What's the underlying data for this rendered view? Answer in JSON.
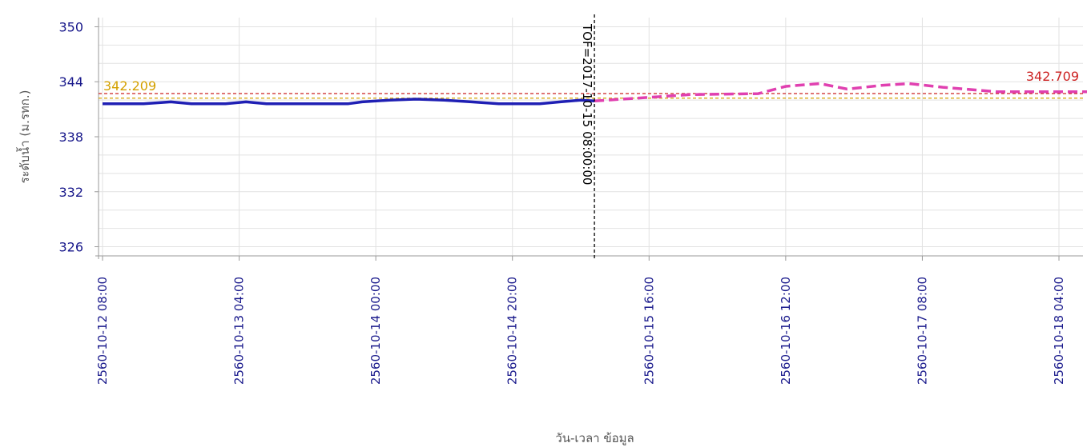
{
  "chart_data": {
    "type": "line",
    "xlabel": "วัน-เวลา ข้อมูล",
    "ylabel": "ระดับน้ำ (ม.รทก.)",
    "ylim": [
      325,
      351
    ],
    "yticks": [
      326,
      332,
      338,
      344,
      350
    ],
    "xlim": [
      "2560-10-12 08:00",
      "2560-10-18 14:00"
    ],
    "xticks": [
      "2560-10-12 08:00",
      "2560-10-13 04:00",
      "2560-10-14 00:00",
      "2560-10-14 20:00",
      "2560-10-15 16:00",
      "2560-10-16 12:00",
      "2560-10-17 08:00",
      "2560-10-18 04:00"
    ],
    "grid": true,
    "series": [
      {
        "style": "solid",
        "color": "#1f1fb4",
        "points": [
          [
            "2560-10-12 08:00",
            341.6
          ],
          [
            "2560-10-12 14:00",
            341.6
          ],
          [
            "2560-10-12 18:00",
            341.8
          ],
          [
            "2560-10-12 21:00",
            341.6
          ],
          [
            "2560-10-13 02:00",
            341.6
          ],
          [
            "2560-10-13 05:00",
            341.8
          ],
          [
            "2560-10-13 08:00",
            341.6
          ],
          [
            "2560-10-13 20:00",
            341.6
          ],
          [
            "2560-10-13 22:00",
            341.8
          ],
          [
            "2560-10-14 02:00",
            342.0
          ],
          [
            "2560-10-14 06:00",
            342.1
          ],
          [
            "2560-10-14 10:00",
            342.0
          ],
          [
            "2560-10-14 14:00",
            341.8
          ],
          [
            "2560-10-14 18:00",
            341.6
          ],
          [
            "2560-10-15 00:00",
            341.6
          ],
          [
            "2560-10-15 03:00",
            341.8
          ],
          [
            "2560-10-15 06:00",
            342.0
          ],
          [
            "2560-10-15 08:00",
            341.9
          ]
        ]
      },
      {
        "style": "dashed",
        "color": "#e040b0",
        "points": [
          [
            "2560-10-15 08:00",
            341.9
          ],
          [
            "2560-10-15 14:00",
            342.2
          ],
          [
            "2560-10-15 22:00",
            342.6
          ],
          [
            "2560-10-16 08:00",
            342.7
          ],
          [
            "2560-10-16 12:00",
            343.5
          ],
          [
            "2560-10-16 17:00",
            343.8
          ],
          [
            "2560-10-16 21:00",
            343.2
          ],
          [
            "2560-10-17 02:00",
            343.6
          ],
          [
            "2560-10-17 06:00",
            343.8
          ],
          [
            "2560-10-17 11:00",
            343.4
          ],
          [
            "2560-10-17 19:00",
            342.9
          ],
          [
            "2560-10-18 04:00",
            342.9
          ],
          [
            "2560-10-18 14:00",
            342.9
          ]
        ]
      }
    ],
    "reference_lines": [
      {
        "value": 342.209,
        "label": "342.209",
        "color": "#d4a000",
        "label_position": "left"
      },
      {
        "value": 342.709,
        "label": "342.709",
        "color": "#cc2222",
        "label_position": "right"
      }
    ],
    "marker": {
      "x": "2560-10-15 08:00",
      "label": "TOF=2017-10-15 08:00:00",
      "color": "#000000"
    }
  }
}
